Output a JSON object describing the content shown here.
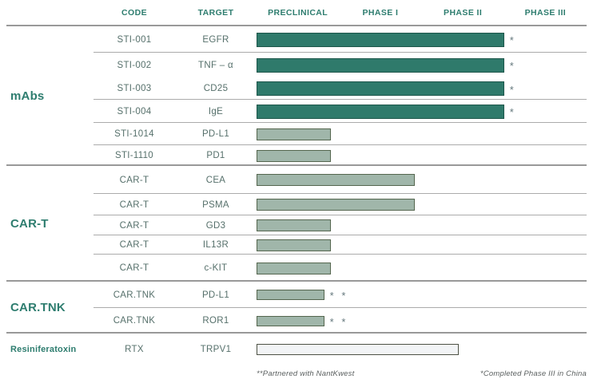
{
  "header": {
    "code_label": "CODE",
    "target_label": "TARGET"
  },
  "chart_data": {
    "type": "bar",
    "orientation": "horizontal",
    "description": "Drug development pipeline: horizontal bars show how far each candidate has progressed across development phases",
    "x_categories": [
      "PRECLINICAL",
      "PHASE I",
      "PHASE II",
      "PHASE III"
    ],
    "xlim": [
      0,
      4
    ],
    "grid": false,
    "legend": "none",
    "groups": [
      {
        "label": "mAbs",
        "rows": [
          {
            "code": "STI-001",
            "target": "EGFR",
            "phase_span": 3.0,
            "style": "dark",
            "note": "*"
          },
          {
            "code": "STI-002",
            "target": "TNF – α",
            "phase_span": 3.0,
            "style": "dark",
            "note": "*"
          },
          {
            "code": "STI-003",
            "target": "CD25",
            "phase_span": 3.0,
            "style": "dark",
            "note": "*"
          },
          {
            "code": "STI-004",
            "target": "IgE",
            "phase_span": 3.0,
            "style": "dark",
            "note": "*"
          },
          {
            "code": "STI-1014",
            "target": "PD-L1",
            "phase_span": 0.9,
            "style": "light",
            "note": ""
          },
          {
            "code": "STI-1110",
            "target": "PD1",
            "phase_span": 0.9,
            "style": "light",
            "note": ""
          }
        ]
      },
      {
        "label": "CAR-T",
        "rows": [
          {
            "code": "CAR-T",
            "target": "CEA",
            "phase_span": 1.92,
            "style": "light",
            "note": ""
          },
          {
            "code": "CAR-T",
            "target": "PSMA",
            "phase_span": 1.92,
            "style": "light",
            "note": ""
          },
          {
            "code": "CAR-T",
            "target": "GD3",
            "phase_span": 0.9,
            "style": "light",
            "note": ""
          },
          {
            "code": "CAR-T",
            "target": "IL13R",
            "phase_span": 0.9,
            "style": "light",
            "note": ""
          },
          {
            "code": "CAR-T",
            "target": "c-KIT",
            "phase_span": 0.9,
            "style": "light",
            "note": ""
          }
        ]
      },
      {
        "label": "CAR.TNK",
        "rows": [
          {
            "code": "CAR.TNK",
            "target": "PD-L1",
            "phase_span": 0.82,
            "style": "light-sm",
            "note": "* *"
          },
          {
            "code": "CAR.TNK",
            "target": "ROR1",
            "phase_span": 0.82,
            "style": "light-sm",
            "note": "* *"
          }
        ]
      },
      {
        "label": "Resiniferatoxin",
        "rows": [
          {
            "code": "RTX",
            "target": "TRPV1",
            "phase_span": 2.45,
            "style": "pale",
            "note": ""
          }
        ]
      }
    ]
  },
  "footnotes": {
    "left": "**Partnered with NantKwest",
    "right": "*Completed Phase III in China"
  },
  "colors": {
    "header_text": "#2e7d6f",
    "row_text": "#56706b",
    "dark_fill": "#2f7a6b",
    "dark_border": "#1e574b",
    "light_fill": "#a0b6aa",
    "light_border": "#55664f",
    "pale_fill": "#f2f4f6",
    "pale_border": "#4d5245",
    "divider": "#999999",
    "row_divider": "#ababab",
    "note_text": "#64787d",
    "footnote_text": "#5a5f5f"
  }
}
